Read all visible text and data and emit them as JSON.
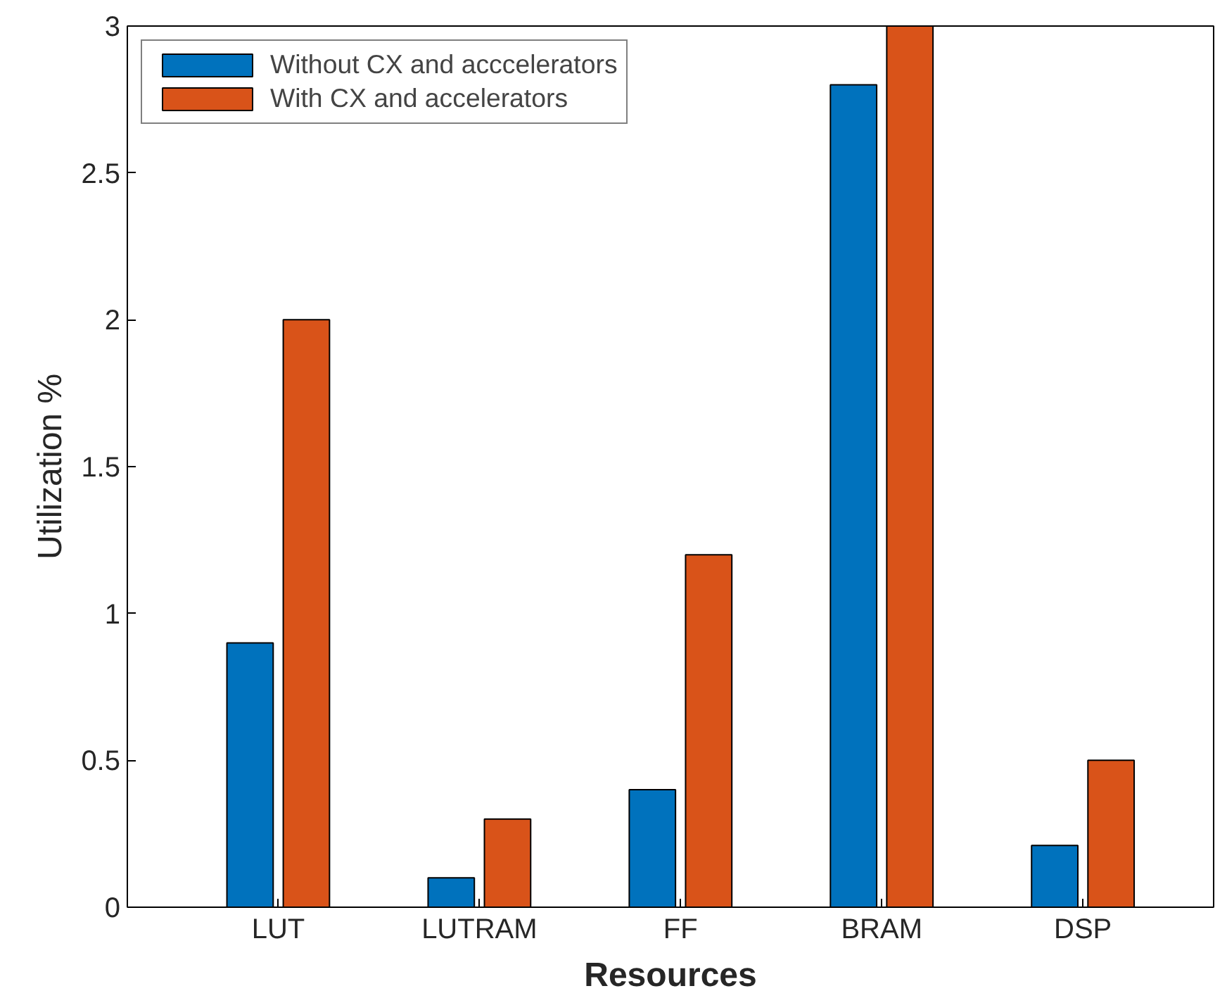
{
  "chart_data": {
    "type": "bar",
    "xlabel": "Resources",
    "ylabel": "Utilization %",
    "categories": [
      "LUT",
      "LUTRAM",
      "FF",
      "BRAM",
      "DSP"
    ],
    "series": [
      {
        "name": "Without CX and acccelerators",
        "color": "#0072bd",
        "values": [
          0.9,
          0.1,
          0.4,
          2.8,
          0.21
        ]
      },
      {
        "name": "With CX and accelerators",
        "color": "#d95319",
        "values": [
          2.0,
          0.3,
          1.2,
          3.0,
          0.5
        ]
      }
    ],
    "ylim": [
      0,
      3
    ],
    "yticks": [
      0,
      0.5,
      1,
      1.5,
      2,
      2.5,
      3
    ],
    "grid": false,
    "legend": "top left"
  }
}
